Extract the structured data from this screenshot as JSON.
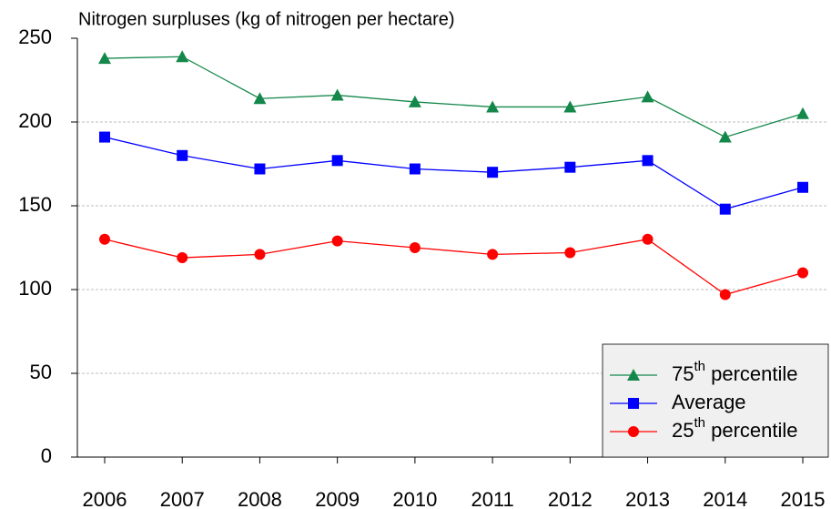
{
  "chart_data": {
    "type": "line",
    "title": "Nitrogen surpluses (kg of nitrogen per hectare)",
    "categories": [
      "2006",
      "2007",
      "2008",
      "2009",
      "2010",
      "2011",
      "2012",
      "2013",
      "2014",
      "2015"
    ],
    "series": [
      {
        "name": "75th percentile",
        "color": "#14884a",
        "marker": "triangle",
        "values": [
          238,
          239,
          214,
          216,
          212,
          209,
          209,
          215,
          191,
          205
        ]
      },
      {
        "name": "Average",
        "color": "#0000ff",
        "marker": "square",
        "values": [
          191,
          180,
          172,
          177,
          172,
          170,
          173,
          177,
          148,
          161
        ]
      },
      {
        "name": "25th percentile",
        "color": "#ff0000",
        "marker": "circle",
        "values": [
          130,
          119,
          121,
          129,
          125,
          121,
          122,
          130,
          97,
          110
        ]
      }
    ],
    "ylim": [
      0,
      250
    ],
    "yticks": [
      0,
      50,
      100,
      150,
      200,
      250
    ],
    "grid": true,
    "legend": "lower right"
  }
}
